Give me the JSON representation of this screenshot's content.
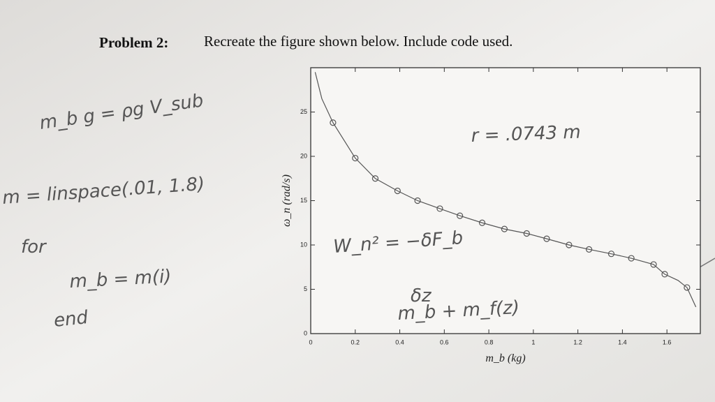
{
  "problem": {
    "label": "Problem 2:",
    "text": "Recreate the figure shown below. Include code used."
  },
  "notes": [
    "m_b g = ρg V_sub",
    "m = linspace(.01, 1.8)",
    "for",
    "m_b = m(i)",
    "end",
    "r = .0743 m",
    "W_n² = −δF_b",
    "δz",
    "m_b + m_f(z)"
  ],
  "chart_data": {
    "type": "line",
    "xlabel": "m_b (kg)",
    "ylabel": "ω_n (rad/s)",
    "xlim": [
      0,
      1.75
    ],
    "ylim": [
      0,
      30
    ],
    "xticks": [
      0,
      0.2,
      0.4,
      0.6,
      0.8,
      1,
      1.2,
      1.4,
      1.6
    ],
    "yticks": [
      0,
      5,
      10,
      15,
      20,
      25
    ],
    "series": [
      {
        "name": "curve",
        "color": "#555555",
        "marker": false,
        "x": [
          0.02,
          0.05,
          0.1,
          0.2,
          0.29,
          0.39,
          0.48,
          0.58,
          0.67,
          0.77,
          0.87,
          0.97,
          1.06,
          1.16,
          1.25,
          1.35,
          1.44,
          1.54,
          1.59,
          1.65,
          1.69,
          1.73
        ],
        "values": [
          29.5,
          26.5,
          23.8,
          19.8,
          17.5,
          16.1,
          15.0,
          14.1,
          13.3,
          12.5,
          11.8,
          11.3,
          10.7,
          10.0,
          9.5,
          9.0,
          8.5,
          7.8,
          6.7,
          6.0,
          5.2,
          3.0
        ]
      },
      {
        "name": "samples",
        "color": "#555555",
        "marker": true,
        "x": [
          0.1,
          0.2,
          0.29,
          0.39,
          0.48,
          0.58,
          0.67,
          0.77,
          0.87,
          0.97,
          1.06,
          1.16,
          1.25,
          1.35,
          1.44,
          1.54,
          1.59,
          1.69
        ],
        "values": [
          23.8,
          19.8,
          17.5,
          16.1,
          15.0,
          14.1,
          13.3,
          12.5,
          11.8,
          11.3,
          10.7,
          10.0,
          9.5,
          9.0,
          8.5,
          7.8,
          6.7,
          5.2
        ]
      }
    ]
  }
}
